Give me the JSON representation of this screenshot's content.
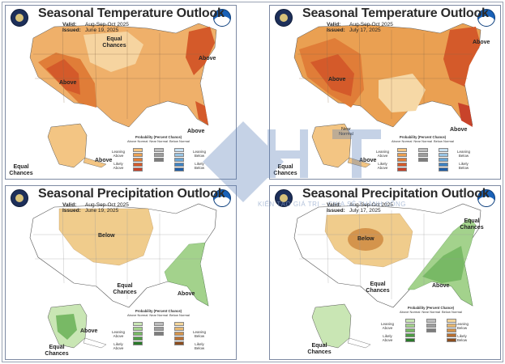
{
  "panels": [
    {
      "title": "Seasonal Temperature Outlook",
      "valid_label": "Valid:",
      "valid_value": "Aug-Sep-Oct 2025",
      "issued_label": "Issued:",
      "issued_value": "June 19, 2025",
      "labels": [
        "Equal Chances",
        "Above",
        "Above",
        "Above",
        "Above",
        "Equal Chances"
      ],
      "legend_title": "Probability (Percent Chance)",
      "legend_heads": [
        "Above Normal",
        "Near Normal",
        "Below Normal"
      ],
      "side_left": "Leaning Above",
      "side_left2": "Likely Above",
      "side_right": "Leaning Below",
      "side_right2": "Likely Below",
      "colors": {
        "above": [
          "#f3c583",
          "#eaa052",
          "#e07d38",
          "#d45a2a",
          "#c8432a"
        ],
        "below": [
          "#c7dff0",
          "#99c4e4",
          "#6aa6d6",
          "#3f82c2",
          "#1f5ea8"
        ]
      }
    },
    {
      "title": "Seasonal Temperature Outlook",
      "valid_label": "Valid:",
      "valid_value": "Aug-Sep-Oct 2025",
      "issued_label": "Issued:",
      "issued_value": "July 17, 2025",
      "labels": [
        "Above",
        "Above",
        "Above",
        "Near Normal",
        "Above",
        "Equal Chances"
      ],
      "legend_title": "Probability (Percent Chance)",
      "legend_heads": [
        "Above Normal",
        "Near Normal",
        "Below Normal"
      ],
      "side_left": "Leaning Above",
      "side_left2": "Likely Above",
      "side_right": "Leaning Below",
      "side_right2": "Likely Below"
    },
    {
      "title": "Seasonal Precipitation Outlook",
      "valid_label": "Valid:",
      "valid_value": "Aug-Sep-Oct 2025",
      "issued_label": "Issued:",
      "issued_value": "June 19, 2025",
      "labels": [
        "Below",
        "Equal Chances",
        "Above",
        "Above",
        "Equal Chances"
      ],
      "legend_title": "Probability (Percent Chance)",
      "legend_heads": [
        "Above Normal",
        "Near Normal",
        "Below Normal"
      ],
      "side_left": "Leaning Above",
      "side_left2": "Likely Above",
      "side_right": "Leaning Below",
      "side_right2": "Likely Below",
      "colors": {
        "above": [
          "#c9e6b4",
          "#a3d28c",
          "#78b965",
          "#4e9d44",
          "#2a7a2a"
        ],
        "below": [
          "#f3d59a",
          "#e6b873",
          "#d4944c",
          "#b87032",
          "#8c4d1e"
        ]
      }
    },
    {
      "title": "Seasonal Precipitation Outlook",
      "valid_label": "Valid:",
      "valid_value": "Aug-Sep-Oct 2025",
      "issued_label": "Issued:",
      "issued_value": "July 17, 2025",
      "labels": [
        "Below",
        "Equal Chances",
        "Above",
        "Equal Chances",
        "Equal Chances"
      ],
      "legend_title": "Probability (Percent Chance)",
      "legend_heads": [
        "Above Normal",
        "Near Normal",
        "Below Normal"
      ],
      "side_left": "Leaning Above",
      "side_left2": "Likely Above",
      "side_right": "Leaning Below",
      "side_right2": "Likely Below"
    }
  ],
  "watermark": {
    "text": "KIẾN TẠO GIÁ TRỊ – CHIA SẺ THÀNH CÔNG"
  }
}
